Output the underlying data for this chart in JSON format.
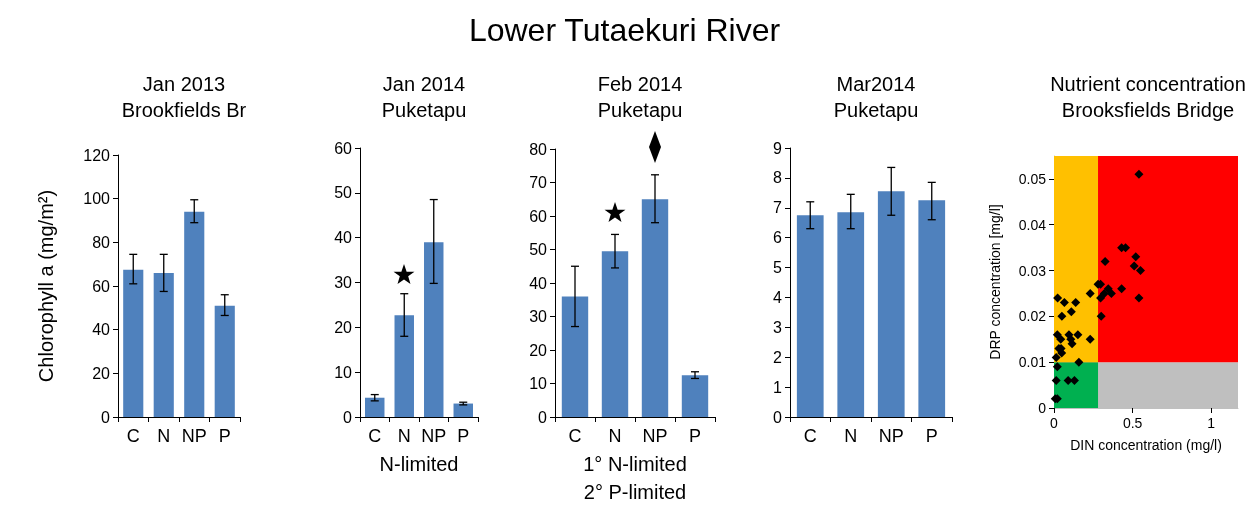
{
  "chart_data": [
    {
      "type": "bar",
      "title": "Jan 2013\nBrookfields Br",
      "ylabel": "Chlorophyll a (mg/m²)",
      "annotations": [
        "Lower Tutaekuri River"
      ],
      "categories": [
        "C",
        "N",
        "NP",
        "P"
      ],
      "values": [
        67.5,
        66,
        94,
        51
      ],
      "errors": [
        [
          61,
          74.5
        ],
        [
          57.5,
          74.5
        ],
        [
          89,
          99.5
        ],
        [
          46.5,
          56
        ]
      ],
      "color": "#4f81bd",
      "ylim": [
        0,
        120
      ],
      "yticks": [
        0,
        20,
        40,
        60,
        80,
        100,
        120
      ],
      "grid": false
    },
    {
      "type": "bar",
      "title": "Jan 2014\nPuketapu",
      "xlabel": "N-limited",
      "categories": [
        "C",
        "N",
        "NP",
        "P"
      ],
      "values": [
        4.3,
        22.7,
        39,
        3
      ],
      "errors": [
        [
          3.6,
          5
        ],
        [
          18,
          27.5
        ],
        [
          29.8,
          48.5
        ],
        [
          2.7,
          3.3
        ]
      ],
      "color": "#4f81bd",
      "ylim": [
        0,
        60
      ],
      "yticks": [
        0,
        10,
        20,
        30,
        40,
        50,
        60
      ],
      "grid": false
    },
    {
      "type": "bar",
      "title": "Feb 2014\nPuketapu",
      "xlabel": "1° N-limited\n2° P-limited",
      "categories": [
        "C",
        "N",
        "NP",
        "P"
      ],
      "values": [
        36,
        49.5,
        65,
        12.5
      ],
      "errors": [
        [
          27,
          45
        ],
        [
          44.5,
          54.5
        ],
        [
          58,
          72.3
        ],
        [
          11.5,
          13.5
        ]
      ],
      "color": "#4f81bd",
      "ylim": [
        0,
        80
      ],
      "yticks": [
        0,
        10,
        20,
        30,
        40,
        50,
        60,
        70,
        80
      ],
      "grid": false
    },
    {
      "type": "bar",
      "title": "Mar2014\nPuketapu",
      "categories": [
        "C",
        "N",
        "NP",
        "P"
      ],
      "values": [
        6.75,
        6.85,
        7.55,
        7.25
      ],
      "errors": [
        [
          6.3,
          7.2
        ],
        [
          6.3,
          7.45
        ],
        [
          6.75,
          8.35
        ],
        [
          6.6,
          7.85
        ]
      ],
      "color": "#4f81bd",
      "ylim": [
        0,
        9
      ],
      "yticks": [
        0,
        1,
        2,
        3,
        4,
        5,
        6,
        7,
        8,
        9
      ],
      "grid": false
    },
    {
      "type": "scatter",
      "title": "Nutrient concentration\nBrooksfields Bridge",
      "xlabel": "DIN concentration (mg/l)",
      "ylabel": "DRP concentration [mg/l]",
      "marker": "diamond",
      "color": "#000000",
      "grid": false,
      "x": [
        0.54,
        0.43,
        0.455,
        0.52,
        0.51,
        0.55,
        0.325,
        0.28,
        0.296,
        0.43,
        0.345,
        0.365,
        0.32,
        0.296,
        0.54,
        0.23,
        0.3,
        0.023,
        0.066,
        0.138,
        0.11,
        0.05,
        0.021,
        0.095,
        0.152,
        0.043,
        0.107,
        0.23,
        0.031,
        0.045,
        0.115,
        0.049,
        0.014,
        0.021,
        0.158,
        0.014,
        0.09,
        0.13,
        0.008,
        0.021
      ],
      "values": [
        0.051,
        0.035,
        0.035,
        0.033,
        0.031,
        0.03,
        0.032,
        0.027,
        0.027,
        0.026,
        0.026,
        0.025,
        0.025,
        0.024,
        0.024,
        0.025,
        0.02,
        0.024,
        0.023,
        0.023,
        0.021,
        0.02,
        0.016,
        0.016,
        0.016,
        0.015,
        0.015,
        0.015,
        0.013,
        0.013,
        0.014,
        0.012,
        0.011,
        0.009,
        0.01,
        0.006,
        0.006,
        0.006,
        0.002,
        0.002
      ],
      "xlim": [
        0,
        1.17
      ],
      "xticks": [
        0,
        0.5,
        1
      ],
      "ylim": [
        0,
        0.055
      ],
      "yticks": [
        0,
        0.01,
        0.02,
        0.03,
        0.04,
        0.05
      ],
      "bands": [
        {
          "axis": "y",
          "from": 0,
          "to": 0.01,
          "color": "#bfbfbf"
        },
        {
          "axis": "y",
          "from": 0.01,
          "to": 0.055,
          "color": "#ff0000"
        },
        {
          "axis": "x",
          "from": 0,
          "to": 0.28,
          "color": "#00b050"
        },
        {
          "axis": "x",
          "from": 0,
          "to": 0.28,
          "color": "#ffc000"
        }
      ]
    }
  ]
}
